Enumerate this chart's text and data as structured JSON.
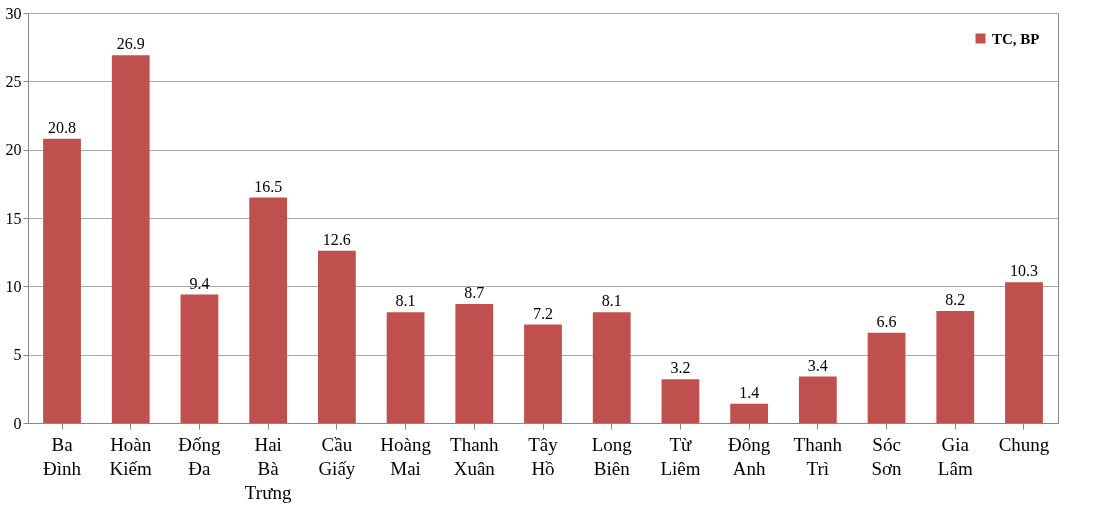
{
  "chart_data": {
    "type": "bar",
    "categories": [
      "Ba Đình",
      "Hoàn Kiếm",
      "Đống Đa",
      "Hai Bà Trưng",
      "Cầu Giấy",
      "Hoàng Mai",
      "Thanh Xuân",
      "Tây Hồ",
      "Long Biên",
      "Từ Liêm",
      "Đông Anh",
      "Thanh Trì",
      "Sóc Sơn",
      "Gia Lâm",
      "Chung"
    ],
    "series": [
      {
        "name": "TC, BP",
        "color": "#c0504d",
        "values": [
          20.8,
          26.9,
          9.4,
          16.5,
          12.6,
          8.1,
          8.7,
          7.2,
          8.1,
          3.2,
          1.4,
          3.4,
          6.6,
          8.2,
          10.3
        ]
      }
    ],
    "ylim": [
      0,
      30
    ],
    "yticks": [
      0,
      5,
      10,
      15,
      20,
      25,
      30
    ],
    "grid": "y",
    "legend": "top right",
    "data_labels": true
  }
}
